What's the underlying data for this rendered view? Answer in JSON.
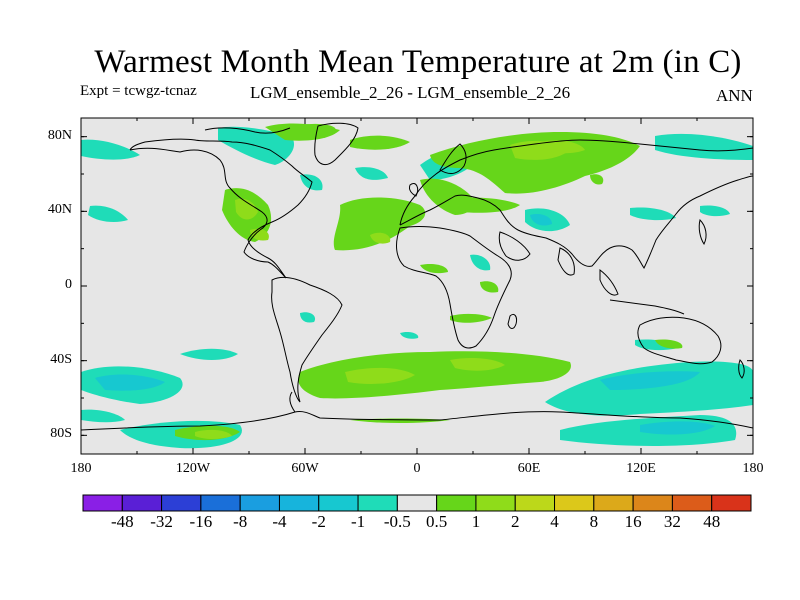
{
  "figure": {
    "title": "Warmest Month Mean Temperature at 2m (in C)",
    "expt": "Expt = tcwgz-tcnaz",
    "comparison": "LGM_ensemble_2_26 - LGM_ensemble_2_26",
    "season": "ANN"
  },
  "axes": {
    "lat_labels": [
      "80N",
      "40N",
      "0",
      "40S",
      "80S"
    ],
    "lat_values": [
      80,
      40,
      0,
      -40,
      -80
    ],
    "lon_labels": [
      "180",
      "120W",
      "60W",
      "0",
      "60E",
      "120E",
      "180"
    ],
    "lon_values": [
      -180,
      -120,
      -60,
      0,
      60,
      120,
      180
    ],
    "lat_range": [
      -90,
      90
    ],
    "lon_range": [
      -180,
      180
    ]
  },
  "colorbar": {
    "labels": [
      "-48",
      "-32",
      "-16",
      "-8",
      "-4",
      "-2",
      "-1",
      "-0.5",
      "0.5",
      "1",
      "2",
      "4",
      "8",
      "16",
      "32",
      "48"
    ],
    "colors": [
      "#8a1fe6",
      "#5a1fd6",
      "#2c3fd6",
      "#1a6fd9",
      "#1a9ee0",
      "#17b4dc",
      "#17c8d0",
      "#1fdcb8",
      "#e6e6e6",
      "#66d61a",
      "#8fdc1a",
      "#bcd81a",
      "#dcc81a",
      "#dca91a",
      "#dc861a",
      "#dc5c1a",
      "#d9331a"
    ]
  },
  "map": {
    "background_color": "#e6e6e6",
    "fields": [
      {
        "region": "Arctic / N America",
        "level": "1"
      },
      {
        "region": "Eastern N America",
        "level": "1"
      },
      {
        "region": "Central N Atlantic",
        "level": "1"
      },
      {
        "region": "Scandinavia / Siberia",
        "level": "2"
      },
      {
        "region": "Southern Ocean Atlantic sector",
        "level": "2"
      },
      {
        "region": "Southern Ocean Pacific sector",
        "level": "-1"
      },
      {
        "region": "Antarctic coast",
        "level": "2"
      }
    ]
  }
}
